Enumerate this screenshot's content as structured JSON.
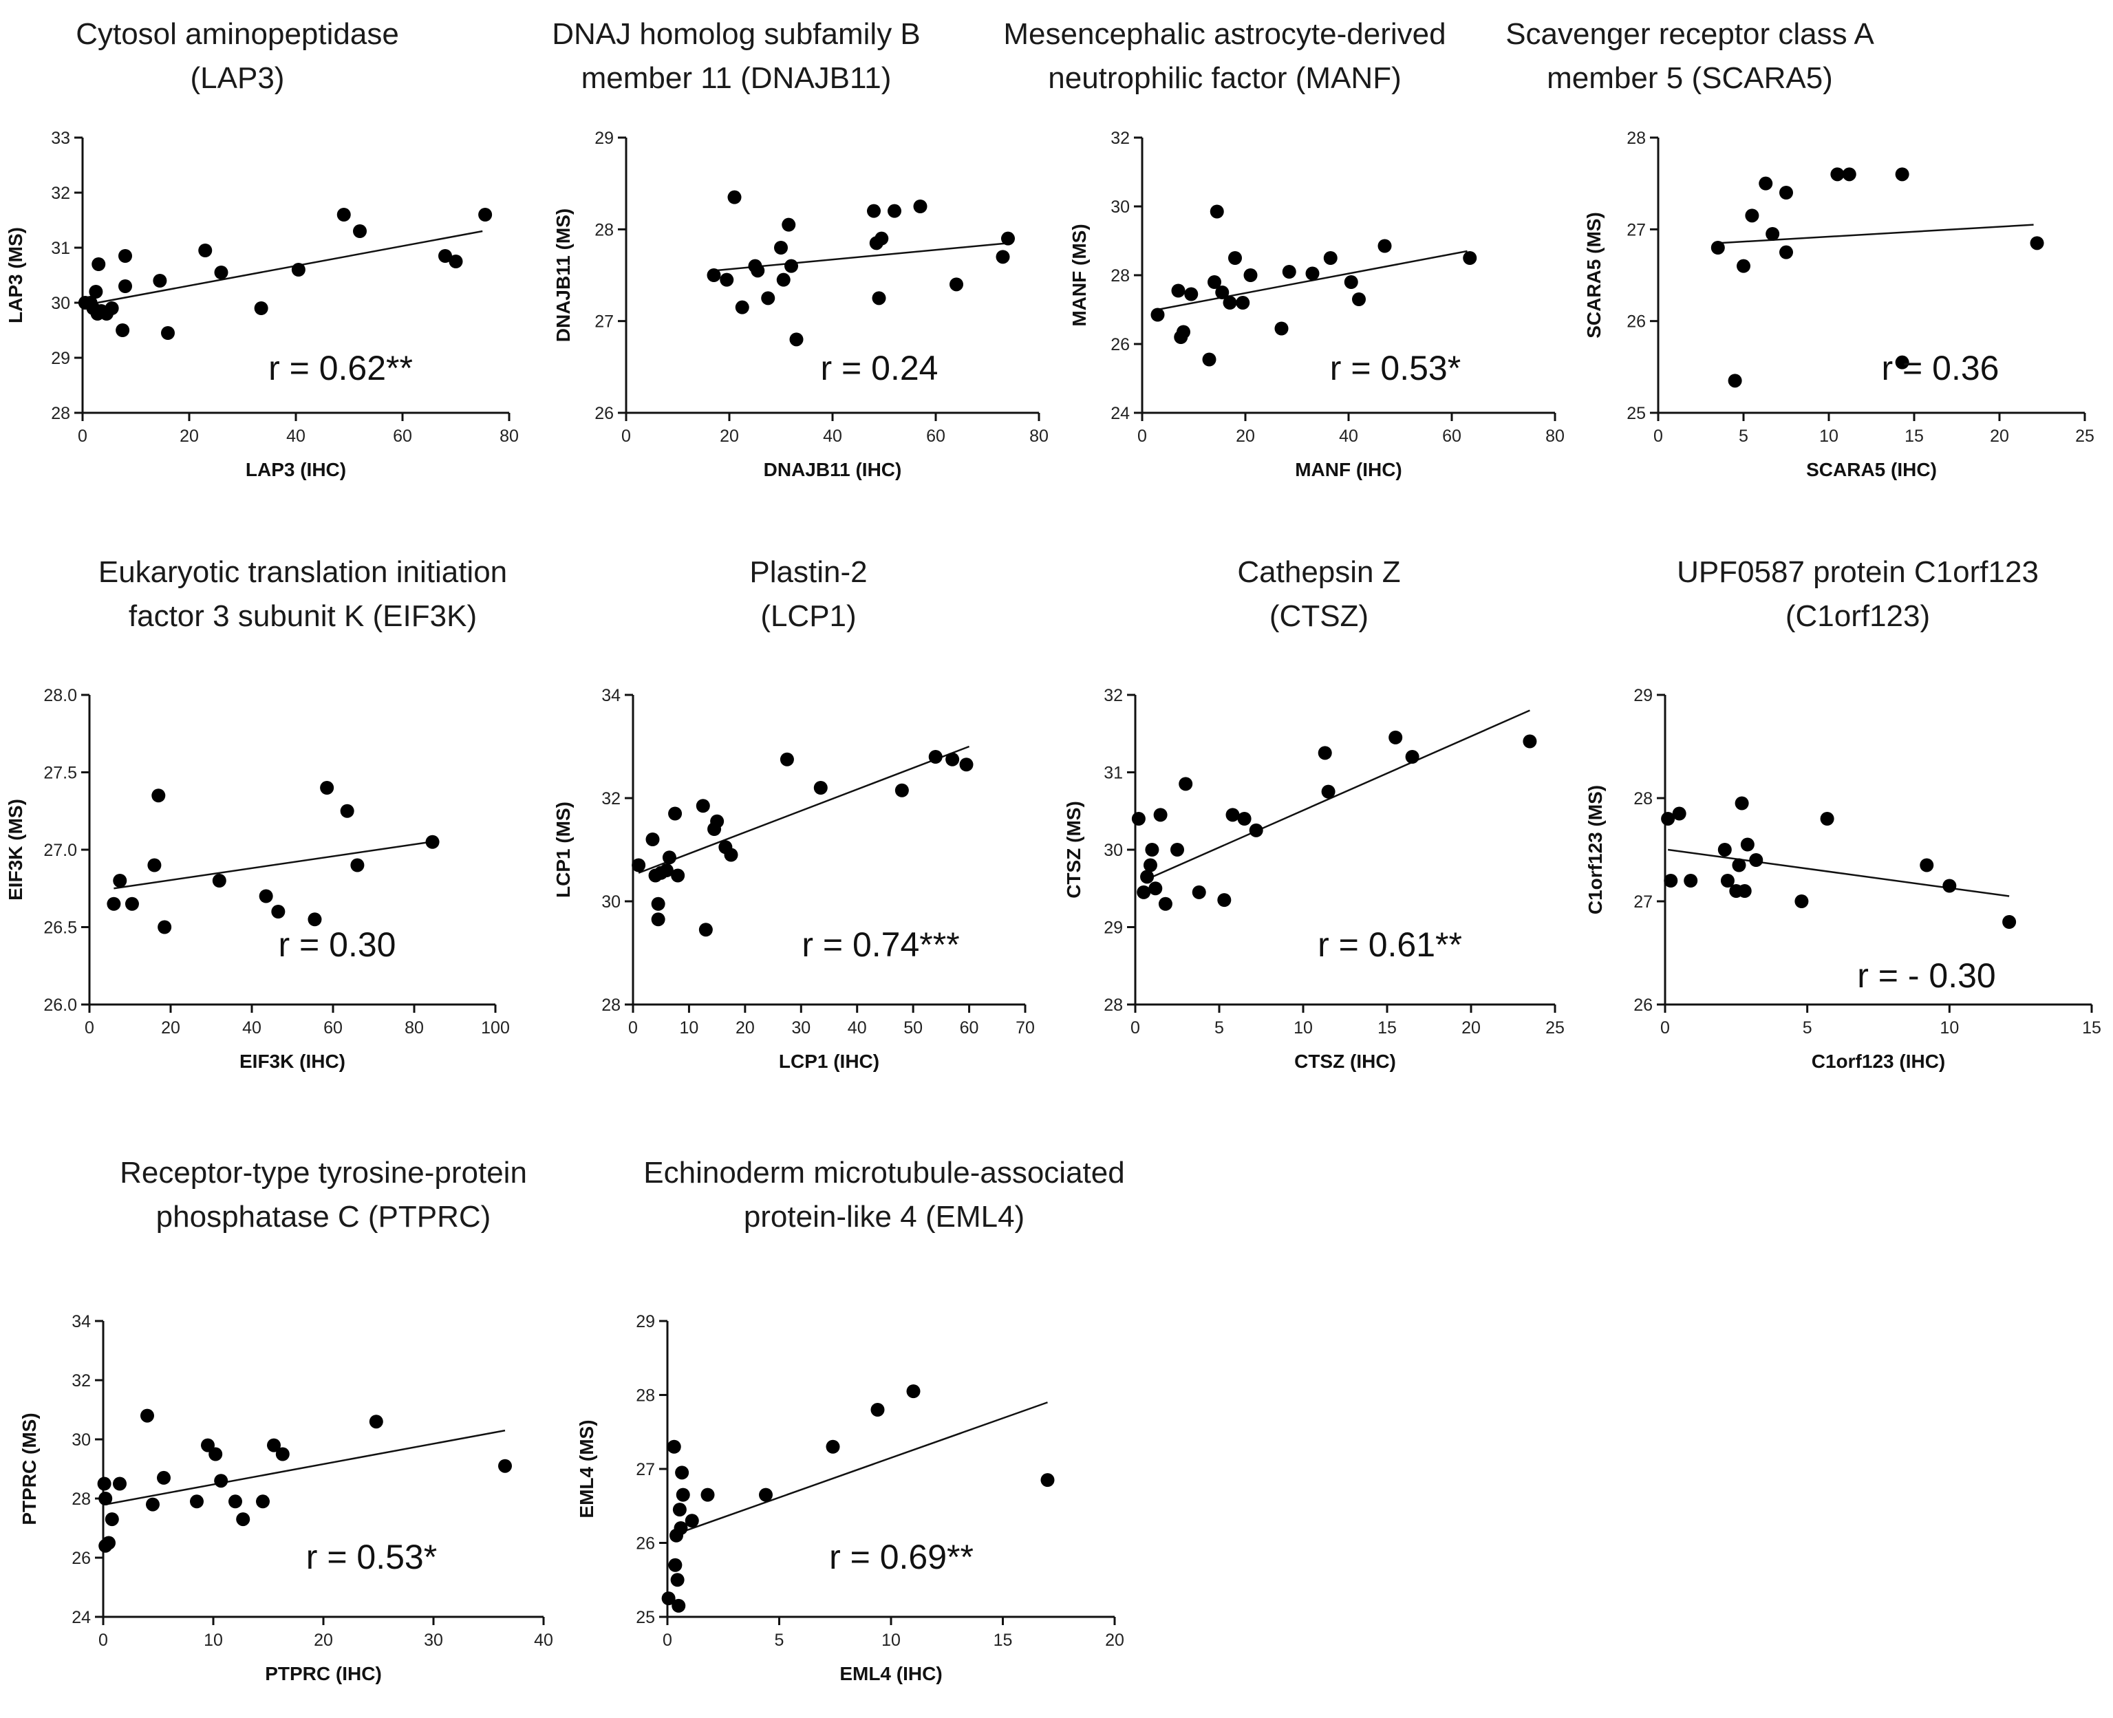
{
  "chart_data": [
    {
      "type": "scatter",
      "title": "Cytosol aminopeptidase (LAP3)",
      "title_lines": [
        "Cytosol aminopeptidase",
        "(LAP3)"
      ],
      "xlabel": "LAP3 (IHC)",
      "ylabel": "LAP3  (MS)",
      "xlim": [
        0,
        80
      ],
      "ylim": [
        28,
        33
      ],
      "xticks": [
        0,
        20,
        40,
        60,
        80
      ],
      "yticks": [
        28,
        29,
        30,
        31,
        32,
        33
      ],
      "r_label": "r = 0.62**",
      "trend": [
        [
          0,
          29.95
        ],
        [
          75,
          31.3
        ]
      ],
      "points": [
        [
          0.5,
          30.0
        ],
        [
          1.5,
          30.0
        ],
        [
          2.0,
          29.9
        ],
        [
          2.5,
          30.2
        ],
        [
          2.8,
          29.8
        ],
        [
          3.0,
          30.7
        ],
        [
          3.5,
          29.85
        ],
        [
          4.5,
          29.8
        ],
        [
          5.5,
          29.9
        ],
        [
          7.5,
          29.5
        ],
        [
          8.0,
          30.85
        ],
        [
          8.0,
          30.3
        ],
        [
          14.5,
          30.4
        ],
        [
          16.0,
          29.45
        ],
        [
          23.0,
          30.95
        ],
        [
          26.0,
          30.55
        ],
        [
          33.5,
          29.9
        ],
        [
          40.5,
          30.6
        ],
        [
          49.0,
          31.6
        ],
        [
          52.0,
          31.3
        ],
        [
          68.0,
          30.85
        ],
        [
          70.0,
          30.75
        ],
        [
          75.5,
          31.6
        ]
      ]
    },
    {
      "type": "scatter",
      "title": "DNAJ homolog subfamily B member 11 (DNAJB11)",
      "title_lines": [
        "DNAJ homolog subfamily B",
        "member 11 (DNAJB11)"
      ],
      "xlabel": "DNAJB11 (IHC)",
      "ylabel": "DNAJB11 (MS)",
      "xlim": [
        0,
        80
      ],
      "ylim": [
        26,
        29
      ],
      "xticks": [
        0,
        20,
        40,
        60,
        80
      ],
      "yticks": [
        26,
        27,
        28,
        29
      ],
      "r_label": "r = 0.24",
      "trend": [
        [
          17,
          27.55
        ],
        [
          74,
          27.85
        ]
      ],
      "points": [
        [
          17.0,
          27.5
        ],
        [
          19.5,
          27.45
        ],
        [
          21.0,
          28.35
        ],
        [
          22.5,
          27.15
        ],
        [
          25.0,
          27.6
        ],
        [
          25.5,
          27.55
        ],
        [
          27.5,
          27.25
        ],
        [
          30.0,
          27.8
        ],
        [
          30.5,
          27.45
        ],
        [
          31.5,
          28.05
        ],
        [
          32.0,
          27.6
        ],
        [
          33.0,
          26.8
        ],
        [
          48.0,
          28.2
        ],
        [
          48.5,
          27.85
        ],
        [
          49.0,
          27.25
        ],
        [
          49.5,
          27.9
        ],
        [
          52.0,
          28.2
        ],
        [
          57.0,
          28.25
        ],
        [
          64.0,
          27.4
        ],
        [
          73.0,
          27.7
        ],
        [
          74.0,
          27.9
        ]
      ]
    },
    {
      "type": "scatter",
      "title": "Mesencephalic astrocyte-derived neutrophilic factor (MANF)",
      "title_lines": [
        "Mesencephalic astrocyte-derived",
        "neutrophilic factor (MANF)"
      ],
      "xlabel": "MANF (IHC)",
      "ylabel": "MANF (MS)",
      "xlim": [
        0,
        80
      ],
      "ylim": [
        24,
        32
      ],
      "xticks": [
        0,
        20,
        40,
        60,
        80
      ],
      "yticks": [
        24,
        26,
        28,
        30,
        32
      ],
      "r_label": "r = 0.53*",
      "trend": [
        [
          3,
          27.0
        ],
        [
          63,
          28.7
        ]
      ],
      "points": [
        [
          3.0,
          26.85
        ],
        [
          7.0,
          27.55
        ],
        [
          7.5,
          26.2
        ],
        [
          8.0,
          26.35
        ],
        [
          9.5,
          27.45
        ],
        [
          13.0,
          25.55
        ],
        [
          14.0,
          27.8
        ],
        [
          14.5,
          29.85
        ],
        [
          15.5,
          27.5
        ],
        [
          17.0,
          27.2
        ],
        [
          18.0,
          28.5
        ],
        [
          19.5,
          27.2
        ],
        [
          21.0,
          28.0
        ],
        [
          27.0,
          26.45
        ],
        [
          28.5,
          28.1
        ],
        [
          33.0,
          28.05
        ],
        [
          36.5,
          28.5
        ],
        [
          40.5,
          27.8
        ],
        [
          42.0,
          27.3
        ],
        [
          47.0,
          28.85
        ],
        [
          63.5,
          28.5
        ]
      ]
    },
    {
      "type": "scatter",
      "title": "Scavenger receptor class A member 5 (SCARA5)",
      "title_lines": [
        "Scavenger receptor class A",
        "member 5 (SCARA5)"
      ],
      "xlabel": "SCARA5 (IHC)",
      "ylabel": "SCARA5 (MS)",
      "xlim": [
        0,
        25
      ],
      "ylim": [
        25,
        28
      ],
      "xticks": [
        0,
        5,
        10,
        15,
        20,
        25
      ],
      "yticks": [
        25,
        26,
        27,
        28
      ],
      "r_label": "r = 0.36",
      "trend": [
        [
          3.5,
          26.85
        ],
        [
          22,
          27.05
        ]
      ],
      "points": [
        [
          3.5,
          26.8
        ],
        [
          4.5,
          25.35
        ],
        [
          5.0,
          26.6
        ],
        [
          5.5,
          27.15
        ],
        [
          6.3,
          27.5
        ],
        [
          6.7,
          26.95
        ],
        [
          7.5,
          27.4
        ],
        [
          7.5,
          26.75
        ],
        [
          10.5,
          27.6
        ],
        [
          11.2,
          27.6
        ],
        [
          14.3,
          27.6
        ],
        [
          14.3,
          25.55
        ],
        [
          22.2,
          26.85
        ]
      ]
    },
    {
      "type": "scatter",
      "title": "Eukaryotic translation initiation factor 3 subunit K (EIF3K)",
      "title_lines": [
        "Eukaryotic translation initiation",
        "factor 3 subunit K (EIF3K)"
      ],
      "xlabel": "EIF3K (IHC)",
      "ylabel": "EIF3K (MS)",
      "xlim": [
        0,
        100
      ],
      "ylim": [
        26.0,
        28.0
      ],
      "xticks": [
        0,
        20,
        40,
        60,
        80,
        100
      ],
      "yticks": [
        26.0,
        26.5,
        27.0,
        27.5,
        28.0
      ],
      "ytick_labels": [
        "26.0",
        "26.5",
        "27.0",
        "27.5",
        "28.0"
      ],
      "r_label": "r = 0.30",
      "trend": [
        [
          6,
          26.75
        ],
        [
          84,
          27.05
        ]
      ],
      "points": [
        [
          6.0,
          26.65
        ],
        [
          7.5,
          26.8
        ],
        [
          10.5,
          26.65
        ],
        [
          16.0,
          26.9
        ],
        [
          17.0,
          27.35
        ],
        [
          18.5,
          26.5
        ],
        [
          32.0,
          26.8
        ],
        [
          43.5,
          26.7
        ],
        [
          46.5,
          26.6
        ],
        [
          55.5,
          26.55
        ],
        [
          58.5,
          27.4
        ],
        [
          63.5,
          27.25
        ],
        [
          66.0,
          26.9
        ],
        [
          84.5,
          27.05
        ]
      ]
    },
    {
      "type": "scatter",
      "title": "Plastin-2 (LCP1)",
      "title_lines": [
        "Plastin-2",
        "(LCP1)"
      ],
      "xlabel": "LCP1 (IHC)",
      "ylabel": "LCP1 (MS)",
      "xlim": [
        0,
        70
      ],
      "ylim": [
        28,
        34
      ],
      "xticks": [
        0,
        10,
        20,
        30,
        40,
        50,
        60,
        70
      ],
      "yticks": [
        28,
        30,
        32,
        34
      ],
      "r_label": "r = 0.74***",
      "trend": [
        [
          1,
          30.55
        ],
        [
          60,
          33.0
        ]
      ],
      "points": [
        [
          1.0,
          30.7
        ],
        [
          3.5,
          31.2
        ],
        [
          4.0,
          30.5
        ],
        [
          4.5,
          29.95
        ],
        [
          4.5,
          29.65
        ],
        [
          5.0,
          30.55
        ],
        [
          6.0,
          30.6
        ],
        [
          6.5,
          30.85
        ],
        [
          7.5,
          31.7
        ],
        [
          8.0,
          30.5
        ],
        [
          12.5,
          31.85
        ],
        [
          13.0,
          29.45
        ],
        [
          14.5,
          31.4
        ],
        [
          15.0,
          31.55
        ],
        [
          16.5,
          31.05
        ],
        [
          17.5,
          30.9
        ],
        [
          27.5,
          32.75
        ],
        [
          33.5,
          32.2
        ],
        [
          48.0,
          32.15
        ],
        [
          54.0,
          32.8
        ],
        [
          57.0,
          32.75
        ],
        [
          59.5,
          32.65
        ]
      ]
    },
    {
      "type": "scatter",
      "title": "Cathepsin Z (CTSZ)",
      "title_lines": [
        "Cathepsin Z",
        "(CTSZ)"
      ],
      "xlabel": "CTSZ (IHC)",
      "ylabel": "CTSZ (MS)",
      "xlim": [
        0,
        25
      ],
      "ylim": [
        28,
        32
      ],
      "xticks": [
        0,
        5,
        10,
        15,
        20,
        25
      ],
      "yticks": [
        28,
        29,
        30,
        31,
        32
      ],
      "r_label": "r = 0.61**",
      "trend": [
        [
          0.5,
          29.6
        ],
        [
          23.5,
          31.8
        ]
      ],
      "points": [
        [
          0.2,
          30.4
        ],
        [
          0.5,
          29.45
        ],
        [
          0.7,
          29.65
        ],
        [
          0.9,
          29.8
        ],
        [
          1.0,
          30.0
        ],
        [
          1.2,
          29.5
        ],
        [
          1.5,
          30.45
        ],
        [
          1.8,
          29.3
        ],
        [
          2.5,
          30.0
        ],
        [
          3.0,
          30.85
        ],
        [
          3.8,
          29.45
        ],
        [
          5.3,
          29.35
        ],
        [
          5.8,
          30.45
        ],
        [
          6.5,
          30.4
        ],
        [
          7.2,
          30.25
        ],
        [
          11.3,
          31.25
        ],
        [
          11.5,
          30.75
        ],
        [
          15.5,
          31.45
        ],
        [
          16.5,
          31.2
        ],
        [
          23.5,
          31.4
        ]
      ]
    },
    {
      "type": "scatter",
      "title": "UPF0587 protein C1orf123 (C1orf123)",
      "title_lines": [
        "UPF0587 protein C1orf123",
        "(C1orf123)"
      ],
      "xlabel": "C1orf123 (IHC)",
      "ylabel": "C1orf123  (MS)",
      "xlim": [
        0,
        15
      ],
      "ylim": [
        26,
        29
      ],
      "xticks": [
        0,
        5,
        10,
        15
      ],
      "yticks": [
        26,
        27,
        28,
        29
      ],
      "r_label": "r = - 0.30",
      "trend": [
        [
          0.1,
          27.5
        ],
        [
          12.1,
          27.05
        ]
      ],
      "points": [
        [
          0.1,
          27.8
        ],
        [
          0.2,
          27.2
        ],
        [
          0.5,
          27.85
        ],
        [
          0.9,
          27.2
        ],
        [
          2.1,
          27.5
        ],
        [
          2.2,
          27.2
        ],
        [
          2.5,
          27.1
        ],
        [
          2.6,
          27.35
        ],
        [
          2.7,
          27.95
        ],
        [
          2.8,
          27.1
        ],
        [
          2.9,
          27.55
        ],
        [
          3.2,
          27.4
        ],
        [
          4.8,
          27.0
        ],
        [
          5.7,
          27.8
        ],
        [
          9.2,
          27.35
        ],
        [
          10.0,
          27.15
        ],
        [
          12.1,
          26.8
        ]
      ]
    },
    {
      "type": "scatter",
      "title": "Receptor-type tyrosine-protein phosphatase C (PTPRC)",
      "title_lines": [
        "Receptor-type tyrosine-protein",
        "phosphatase C (PTPRC)"
      ],
      "xlabel": "PTPRC (IHC)",
      "ylabel": "PTPRC (MS)",
      "xlim": [
        0,
        40
      ],
      "ylim": [
        24,
        34
      ],
      "xticks": [
        0,
        10,
        20,
        30,
        40
      ],
      "yticks": [
        24,
        26,
        28,
        30,
        32,
        34
      ],
      "r_label": "r = 0.53*",
      "trend": [
        [
          0.2,
          27.8
        ],
        [
          36.5,
          30.3
        ]
      ],
      "points": [
        [
          0.1,
          28.5
        ],
        [
          0.2,
          28.0
        ],
        [
          0.2,
          26.4
        ],
        [
          0.5,
          26.5
        ],
        [
          0.8,
          27.3
        ],
        [
          1.5,
          28.5
        ],
        [
          4.0,
          30.8
        ],
        [
          4.5,
          27.8
        ],
        [
          5.5,
          28.7
        ],
        [
          8.5,
          27.9
        ],
        [
          9.5,
          29.8
        ],
        [
          10.2,
          29.5
        ],
        [
          10.7,
          28.6
        ],
        [
          12.0,
          27.9
        ],
        [
          12.7,
          27.3
        ],
        [
          14.5,
          27.9
        ],
        [
          15.5,
          29.8
        ],
        [
          16.3,
          29.5
        ],
        [
          24.8,
          30.6
        ],
        [
          36.5,
          29.1
        ]
      ]
    },
    {
      "type": "scatter",
      "title": "Echinoderm microtubule-associated protein-like 4 (EML4)",
      "title_lines": [
        "Echinoderm microtubule-associated",
        "protein-like 4 (EML4)"
      ],
      "xlabel": "EML4 (IHC)",
      "ylabel": "EML4  (MS)",
      "xlim": [
        0,
        20
      ],
      "ylim": [
        25,
        29
      ],
      "xticks": [
        0,
        5,
        10,
        15,
        20
      ],
      "yticks": [
        25,
        26,
        27,
        28,
        29
      ],
      "r_label": "r = 0.69**",
      "trend": [
        [
          0.2,
          26.1
        ],
        [
          17,
          27.9
        ]
      ],
      "points": [
        [
          0.05,
          25.25
        ],
        [
          0.3,
          27.3
        ],
        [
          0.35,
          25.7
        ],
        [
          0.4,
          26.1
        ],
        [
          0.45,
          25.5
        ],
        [
          0.5,
          25.15
        ],
        [
          0.55,
          26.45
        ],
        [
          0.6,
          26.2
        ],
        [
          0.65,
          26.95
        ],
        [
          0.7,
          26.65
        ],
        [
          1.1,
          26.3
        ],
        [
          1.8,
          26.65
        ],
        [
          4.4,
          26.65
        ],
        [
          7.4,
          27.3
        ],
        [
          9.4,
          27.8
        ],
        [
          11.0,
          28.05
        ],
        [
          17.0,
          26.85
        ]
      ]
    }
  ]
}
